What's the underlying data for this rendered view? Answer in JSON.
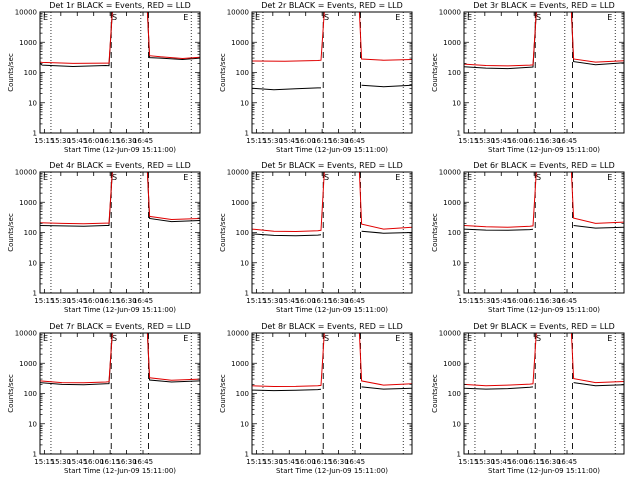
{
  "chart_data": [
    {
      "title": "Det 1r BLACK = Events, RED = LLD",
      "black": [
        [
          0,
          200
        ],
        [
          2,
          175
        ],
        [
          30,
          158
        ],
        [
          60,
          170
        ],
        [
          63,
          168
        ],
        [
          66,
          10000
        ],
        [
          68,
          10000
        ],
        [
          98,
          10000
        ],
        [
          100,
          310
        ],
        [
          110,
          300
        ],
        [
          130,
          270
        ],
        [
          146,
          300
        ]
      ],
      "red": [
        [
          0,
          220
        ],
        [
          2,
          215
        ],
        [
          30,
          200
        ],
        [
          60,
          205
        ],
        [
          63,
          205
        ],
        [
          66,
          10000
        ],
        [
          68,
          10000
        ],
        [
          98,
          10000
        ],
        [
          100,
          360
        ],
        [
          110,
          330
        ],
        [
          130,
          290
        ],
        [
          146,
          320
        ]
      ]
    },
    {
      "title": "Det 2r BLACK = Events, RED = LLD",
      "black": [
        [
          0,
          30
        ],
        [
          20,
          27
        ],
        [
          40,
          29
        ],
        [
          60,
          31
        ],
        [
          63,
          31
        ]
      ],
      "black2": [
        [
          100,
          38
        ],
        [
          120,
          34
        ],
        [
          146,
          38
        ]
      ],
      "red": [
        [
          0,
          240
        ],
        [
          30,
          235
        ],
        [
          60,
          250
        ],
        [
          63,
          255
        ],
        [
          66,
          10000
        ],
        [
          68,
          10000
        ],
        [
          98,
          10000
        ],
        [
          100,
          280
        ],
        [
          120,
          255
        ],
        [
          146,
          270
        ]
      ]
    },
    {
      "title": "Det 3r BLACK = Events, RED = LLD",
      "black": [
        [
          0,
          155
        ],
        [
          20,
          140
        ],
        [
          40,
          135
        ],
        [
          60,
          150
        ],
        [
          63,
          152
        ],
        [
          66,
          10000
        ],
        [
          68,
          10000
        ],
        [
          98,
          10000
        ],
        [
          100,
          230
        ],
        [
          120,
          180
        ],
        [
          146,
          210
        ]
      ],
      "red": [
        [
          0,
          190
        ],
        [
          20,
          170
        ],
        [
          40,
          165
        ],
        [
          60,
          175
        ],
        [
          63,
          178
        ],
        [
          66,
          10000
        ],
        [
          68,
          10000
        ],
        [
          98,
          10000
        ],
        [
          100,
          280
        ],
        [
          120,
          220
        ],
        [
          146,
          245
        ]
      ]
    },
    {
      "title": "Det 4r BLACK = Events, RED = LLD",
      "black": [
        [
          0,
          170
        ],
        [
          20,
          165
        ],
        [
          40,
          160
        ],
        [
          60,
          170
        ],
        [
          63,
          170
        ],
        [
          66,
          10000
        ],
        [
          68,
          10000
        ],
        [
          98,
          10000
        ],
        [
          100,
          290
        ],
        [
          120,
          230
        ],
        [
          146,
          250
        ]
      ],
      "red": [
        [
          0,
          210
        ],
        [
          20,
          200
        ],
        [
          40,
          195
        ],
        [
          60,
          205
        ],
        [
          63,
          205
        ],
        [
          66,
          10000
        ],
        [
          68,
          10000
        ],
        [
          98,
          10000
        ],
        [
          100,
          340
        ],
        [
          120,
          270
        ],
        [
          146,
          290
        ]
      ]
    },
    {
      "title": "Det 5r BLACK = Events, RED = LLD",
      "black": [
        [
          0,
          90
        ],
        [
          20,
          80
        ],
        [
          40,
          78
        ],
        [
          60,
          82
        ],
        [
          63,
          84
        ]
      ],
      "black2": [
        [
          100,
          110
        ],
        [
          120,
          95
        ],
        [
          146,
          100
        ]
      ],
      "red": [
        [
          0,
          130
        ],
        [
          20,
          110
        ],
        [
          40,
          108
        ],
        [
          60,
          115
        ],
        [
          63,
          118
        ],
        [
          66,
          10000
        ],
        [
          68,
          10000
        ],
        [
          98,
          10000
        ],
        [
          100,
          190
        ],
        [
          120,
          130
        ],
        [
          146,
          150
        ]
      ]
    },
    {
      "title": "Det 6r BLACK = Events, RED = LLD",
      "black": [
        [
          0,
          130
        ],
        [
          20,
          120
        ],
        [
          40,
          118
        ],
        [
          60,
          125
        ],
        [
          63,
          128
        ]
      ],
      "black2": [
        [
          100,
          170
        ],
        [
          120,
          140
        ],
        [
          146,
          150
        ]
      ],
      "red": [
        [
          0,
          170
        ],
        [
          20,
          155
        ],
        [
          40,
          150
        ],
        [
          60,
          160
        ],
        [
          63,
          165
        ],
        [
          66,
          10000
        ],
        [
          68,
          10000
        ],
        [
          98,
          10000
        ],
        [
          100,
          300
        ],
        [
          120,
          200
        ],
        [
          146,
          220
        ]
      ]
    },
    {
      "title": "Det 7r BLACK = Events, RED = LLD",
      "black": [
        [
          0,
          230
        ],
        [
          20,
          200
        ],
        [
          40,
          195
        ],
        [
          60,
          210
        ],
        [
          63,
          212
        ],
        [
          66,
          10000
        ],
        [
          68,
          10000
        ],
        [
          98,
          10000
        ],
        [
          100,
          280
        ],
        [
          120,
          240
        ],
        [
          146,
          260
        ]
      ],
      "red": [
        [
          0,
          260
        ],
        [
          20,
          230
        ],
        [
          40,
          225
        ],
        [
          60,
          240
        ],
        [
          63,
          245
        ],
        [
          66,
          10000
        ],
        [
          68,
          10000
        ],
        [
          98,
          10000
        ],
        [
          100,
          330
        ],
        [
          120,
          275
        ],
        [
          146,
          300
        ]
      ]
    },
    {
      "title": "Det 8r BLACK = Events, RED = LLD",
      "black": [
        [
          0,
          130
        ],
        [
          20,
          125
        ],
        [
          40,
          128
        ],
        [
          60,
          135
        ],
        [
          63,
          138
        ]
      ],
      "black2": [
        [
          100,
          165
        ],
        [
          120,
          140
        ],
        [
          146,
          150
        ]
      ],
      "red": [
        [
          0,
          180
        ],
        [
          20,
          170
        ],
        [
          40,
          172
        ],
        [
          60,
          180
        ],
        [
          63,
          185
        ],
        [
          66,
          10000
        ],
        [
          68,
          10000
        ],
        [
          98,
          10000
        ],
        [
          100,
          260
        ],
        [
          120,
          190
        ],
        [
          146,
          210
        ]
      ]
    },
    {
      "title": "Det 9r BLACK = Events, RED = LLD",
      "black": [
        [
          0,
          150
        ],
        [
          20,
          140
        ],
        [
          40,
          145
        ],
        [
          60,
          160
        ],
        [
          63,
          165
        ]
      ],
      "black2": [
        [
          100,
          230
        ],
        [
          120,
          180
        ],
        [
          146,
          195
        ]
      ],
      "red": [
        [
          0,
          200
        ],
        [
          20,
          180
        ],
        [
          40,
          190
        ],
        [
          60,
          205
        ],
        [
          63,
          210
        ],
        [
          66,
          10000
        ],
        [
          68,
          10000
        ],
        [
          98,
          10000
        ],
        [
          100,
          310
        ],
        [
          120,
          230
        ],
        [
          146,
          250
        ]
      ]
    }
  ],
  "shared": {
    "xlabel": "Start Time (12-Jun-09 15:11:00)",
    "ylabel": "Counts/sec",
    "xlim": [
      0,
      146
    ],
    "ylim": [
      1,
      10000
    ],
    "log_scale_y": true,
    "x_ticks": [
      {
        "x": 4,
        "label": "15:15"
      },
      {
        "x": 19,
        "label": "15:30"
      },
      {
        "x": 34,
        "label": "15:45"
      },
      {
        "x": 49,
        "label": "16:00"
      },
      {
        "x": 64,
        "label": "16:15"
      },
      {
        "x": 79,
        "label": "16:30"
      },
      {
        "x": 94,
        "label": "16:45"
      }
    ],
    "y_ticks": [
      {
        "v": 1,
        "label": "1"
      },
      {
        "v": 10,
        "label": "10"
      },
      {
        "v": 100,
        "label": "100"
      },
      {
        "v": 1000,
        "label": "1000"
      },
      {
        "v": 10000,
        "label": "10000"
      }
    ],
    "dashed_vlines": [
      65,
      99
    ],
    "dotted_vlines": [
      10,
      92,
      138
    ],
    "markers": [
      {
        "x": 5,
        "label": "E"
      },
      {
        "x": 68,
        "label": "S"
      },
      {
        "x": 133,
        "label": "E"
      }
    ],
    "colors": {
      "black_series": "#000000",
      "red_series": "#e00000",
      "frame": "#000000"
    }
  }
}
